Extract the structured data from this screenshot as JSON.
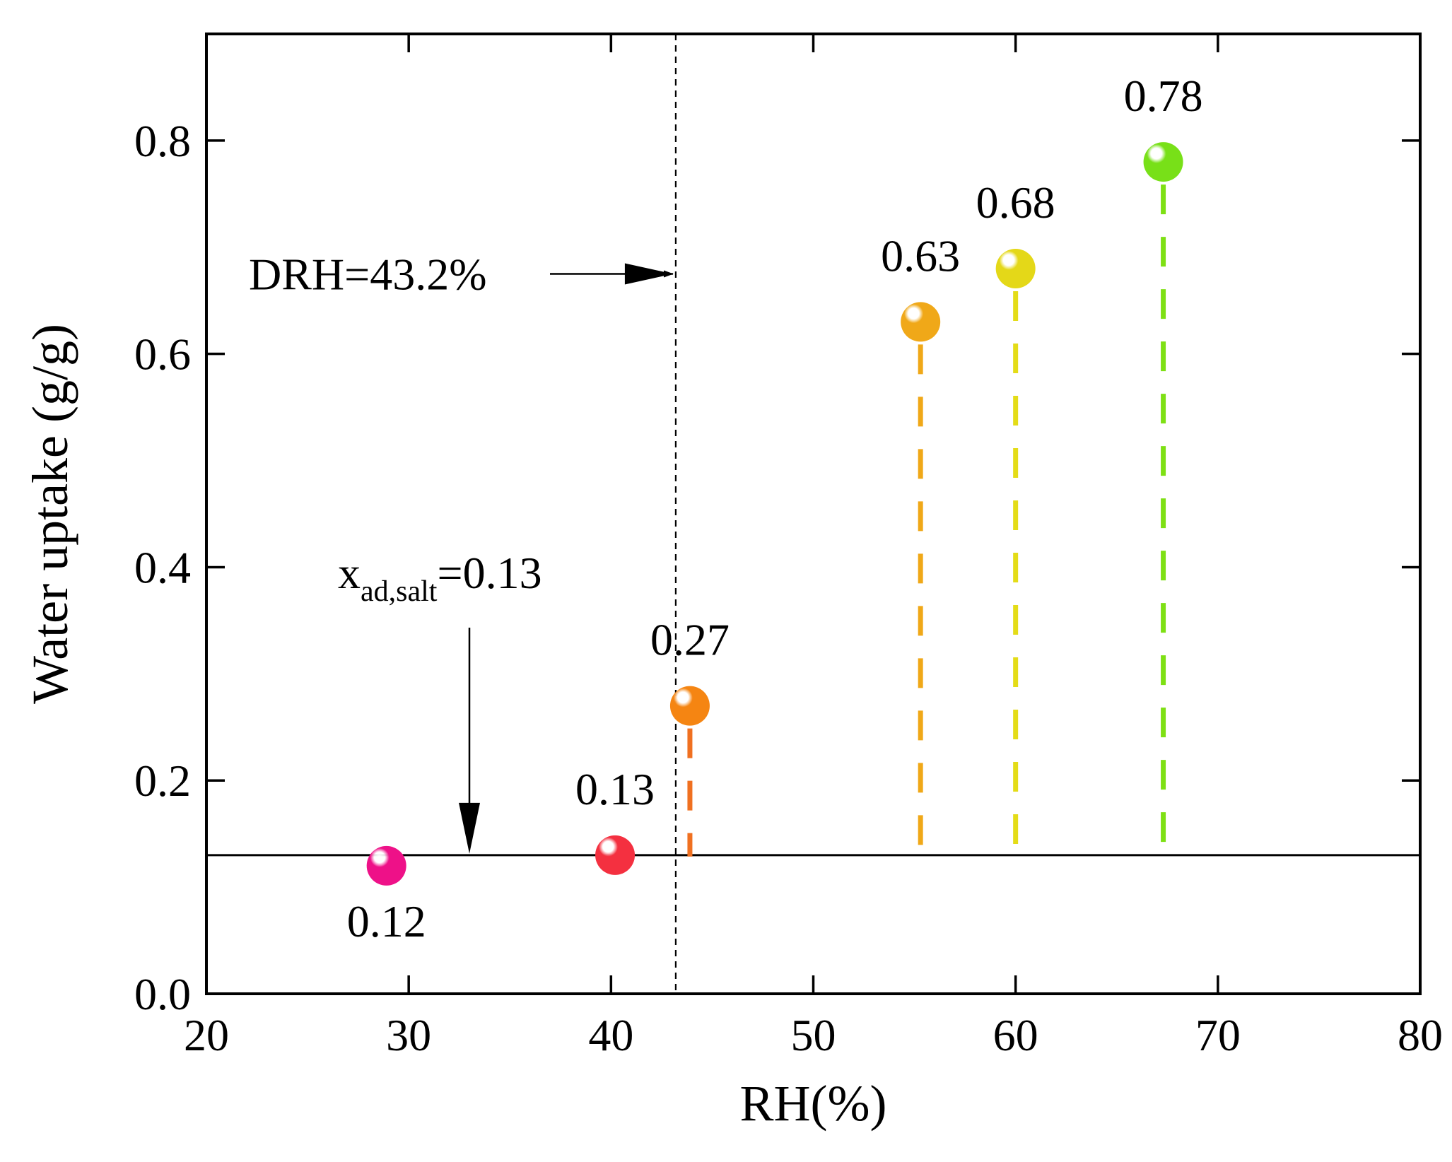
{
  "chart_data": {
    "type": "scatter",
    "xlabel": "RH(%)",
    "ylabel": "Water uptake (g/g)",
    "xlim": [
      20,
      80
    ],
    "ylim": [
      0,
      0.9
    ],
    "xticks": [
      20,
      30,
      40,
      50,
      60,
      70,
      80
    ],
    "xtick_labels": [
      "20",
      "30",
      "40",
      "50",
      "60",
      "70",
      "80"
    ],
    "yticks": [
      0,
      0.2,
      0.4,
      0.6,
      0.8
    ],
    "ytick_labels": [
      "0.0",
      "0.2",
      "0.4",
      "0.6",
      "0.8"
    ],
    "grid": false,
    "points": [
      {
        "x": 28.9,
        "y": 0.12,
        "label": "0.12",
        "color": "#ee1188",
        "stem": false,
        "label_pos": "below"
      },
      {
        "x": 40.2,
        "y": 0.13,
        "label": "0.13",
        "color": "#f43040",
        "stem": false,
        "label_pos": "above"
      },
      {
        "x": 43.9,
        "y": 0.27,
        "label": "0.27",
        "color": "#f58512",
        "stem": true,
        "label_pos": "above"
      },
      {
        "x": 55.3,
        "y": 0.63,
        "label": "0.63",
        "color": "#f0a818",
        "stem": true,
        "label_pos": "above"
      },
      {
        "x": 60.0,
        "y": 0.68,
        "label": "0.68",
        "color": "#e4d818",
        "stem": true,
        "label_pos": "above"
      },
      {
        "x": 67.3,
        "y": 0.78,
        "label": "0.78",
        "color": "#78e018",
        "stem": true,
        "label_pos": "above"
      }
    ],
    "stem_colors": {
      "0.27": "#f07020",
      "0.63": "#f0a818",
      "0.68": "#e4dc18",
      "0.78": "#7ee014"
    },
    "reference_lines": {
      "horizontal_y": 0.13,
      "vertical_x": 43.2
    },
    "annotations": {
      "drh": {
        "text": "DRH=43.2%",
        "points_to": {
          "x": 43.2,
          "y": 0.675
        }
      },
      "salt": {
        "prefix": "x",
        "subscript": "ad,salt",
        "suffix": "=0.13",
        "points_to": {
          "x": 33,
          "y": 0.13
        }
      }
    }
  }
}
